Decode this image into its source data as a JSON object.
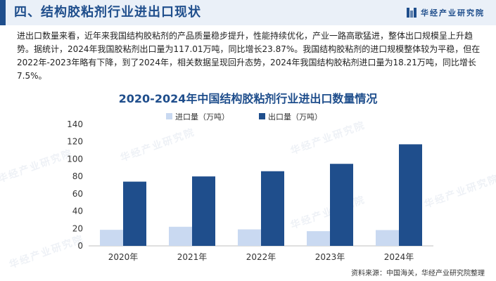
{
  "header": {
    "title": "四、结构胶粘剂行业进出口现状",
    "brand": "华经产业研究院"
  },
  "paragraph": "进出口数量来看，近年来我国结构胶粘剂的产品质量稳步提升，性能持续优化，产业一路高歌猛进，整体出口规模呈上升趋势。据统计，2024年我国胶粘剂出口量为117.01万吨，同比增长23.87%。我国结构胶粘剂的进口规模整体较为平稳，但在2022年-2023年略有下降，到了2024年，相关数据呈现回升态势，2024年我国结构胶粘剂进口量为18.21万吨，同比增长7.5%。",
  "watermark": "华经产业研究院",
  "source": "资料来源：中国海关，华经产业研究院整理",
  "colors": {
    "accent": "#1f4e8c",
    "import": "#c9d9f1",
    "export": "#1f4e8c"
  },
  "chart_data": {
    "type": "bar",
    "title": "2020-2024年中国结构胶粘剂行业进出口数量情况",
    "categories": [
      "2020年",
      "2021年",
      "2022年",
      "2023年",
      "2024年"
    ],
    "series": [
      {
        "name": "进口量（万吨）",
        "values": [
          18.5,
          22.0,
          19.0,
          16.94,
          18.21
        ],
        "color": "#c9d9f1"
      },
      {
        "name": "出口量（万吨）",
        "values": [
          74.0,
          80.0,
          86.0,
          94.5,
          117.01
        ],
        "color": "#1f4e8c"
      }
    ],
    "ylim": [
      0,
      140
    ],
    "yticks": [
      0,
      20,
      40,
      60,
      80,
      100,
      120,
      140
    ],
    "grid": false,
    "legend": "top-left"
  }
}
